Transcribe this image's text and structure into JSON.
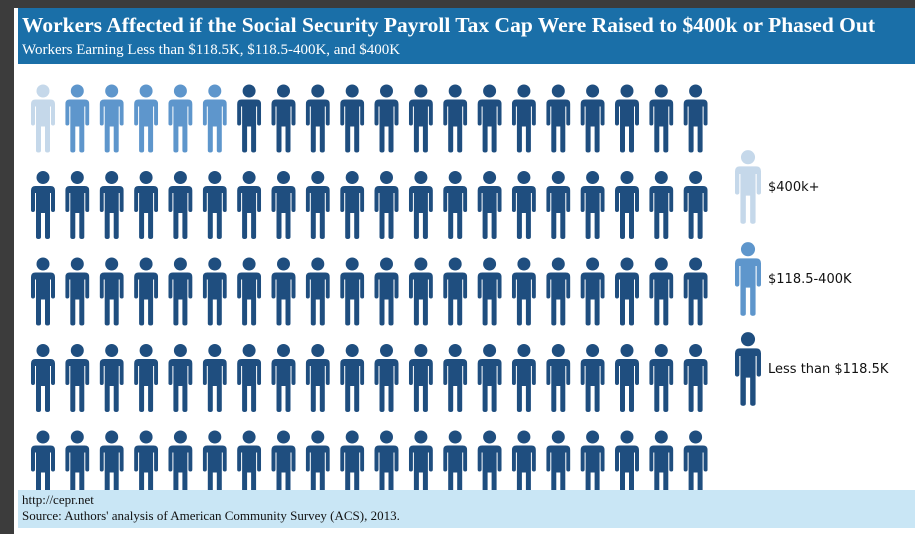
{
  "header": {
    "title": "Workers Affected if  the Social Security Payroll Tax Cap Were Raised to $400k or Phased Out",
    "subtitle": "Workers Earning Less than $118.5K, $118.5-400K, and $400K"
  },
  "footer": {
    "url": "http://cepr.net",
    "source": "Source: Authors' analysis of American Community Survey (ACS), 2013."
  },
  "colors": {
    "header_bg": "#1a6fa8",
    "footer_bg": "#c9e6f5",
    "400k_plus": "#c5d8ea",
    "118_5_400k": "#5e96cc",
    "less_than_118_5k": "#1f4e7f"
  },
  "chart_data": {
    "type": "pictograph",
    "total_icons": 100,
    "rows": 5,
    "icons_per_row": 20,
    "fill_order": "row-major from top-left",
    "series": [
      {
        "name": "$400k+",
        "count": 1,
        "color_key": "400k_plus"
      },
      {
        "name": "$118.5-400K",
        "count": 5,
        "color_key": "118_5_400k"
      },
      {
        "name": "Less than $118.5K",
        "count": 94,
        "color_key": "less_than_118_5k"
      }
    ],
    "legend_placement": "right"
  }
}
